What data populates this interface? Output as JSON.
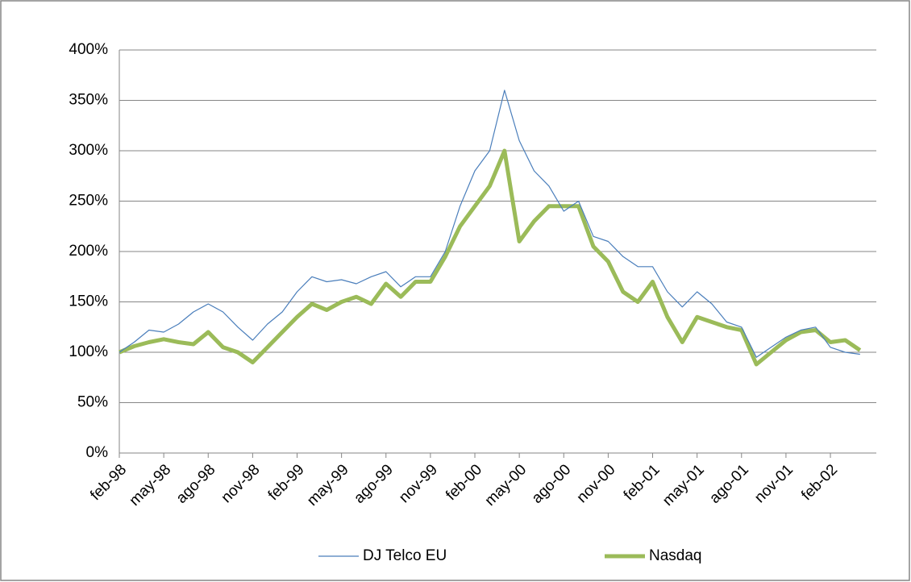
{
  "chart_data": {
    "type": "line",
    "x": [
      "feb-98",
      null,
      null,
      "may-98",
      null,
      null,
      "ago-98",
      null,
      null,
      "nov-98",
      null,
      null,
      "feb-99",
      null,
      null,
      "may-99",
      null,
      null,
      "ago-99",
      null,
      null,
      "nov-99",
      null,
      null,
      "feb-00",
      null,
      null,
      "may-00",
      null,
      null,
      "ago-00",
      null,
      null,
      "nov-00",
      null,
      null,
      "feb-01",
      null,
      null,
      "may-01",
      null,
      null,
      "ago-01",
      null,
      null,
      "nov-01",
      null,
      null,
      "feb-02",
      null,
      null
    ],
    "series": [
      {
        "name": "DJ Telco EU",
        "color": "#4a7ebb",
        "values": [
          100,
          110,
          122,
          120,
          128,
          140,
          148,
          140,
          125,
          112,
          128,
          140,
          160,
          175,
          170,
          172,
          168,
          175,
          180,
          165,
          175,
          175,
          200,
          245,
          280,
          300,
          360,
          310,
          280,
          265,
          240,
          250,
          215,
          210,
          195,
          185,
          185,
          160,
          145,
          160,
          148,
          130,
          125,
          95,
          105,
          115,
          122,
          125,
          105,
          100,
          98
        ]
      },
      {
        "name": "Nasdaq",
        "color": "#9bbb59",
        "values": [
          100,
          106,
          110,
          113,
          110,
          108,
          120,
          105,
          100,
          90,
          105,
          120,
          135,
          148,
          142,
          150,
          155,
          148,
          168,
          155,
          170,
          170,
          195,
          225,
          245,
          265,
          300,
          210,
          230,
          245,
          245,
          245,
          205,
          190,
          160,
          150,
          170,
          135,
          110,
          135,
          130,
          125,
          122,
          88,
          100,
          112,
          120,
          122,
          110,
          112,
          102
        ]
      }
    ],
    "ylim": [
      0,
      400
    ],
    "yticks": [
      {
        "value": 0,
        "label": "0%"
      },
      {
        "value": 50,
        "label": "50%"
      },
      {
        "value": 100,
        "label": "100%"
      },
      {
        "value": 150,
        "label": "150%"
      },
      {
        "value": 200,
        "label": "200%"
      },
      {
        "value": 250,
        "label": "250%"
      },
      {
        "value": 300,
        "label": "300%"
      },
      {
        "value": 350,
        "label": "350%"
      },
      {
        "value": 400,
        "label": "400%"
      }
    ],
    "grid": true,
    "legend": "bottom"
  }
}
